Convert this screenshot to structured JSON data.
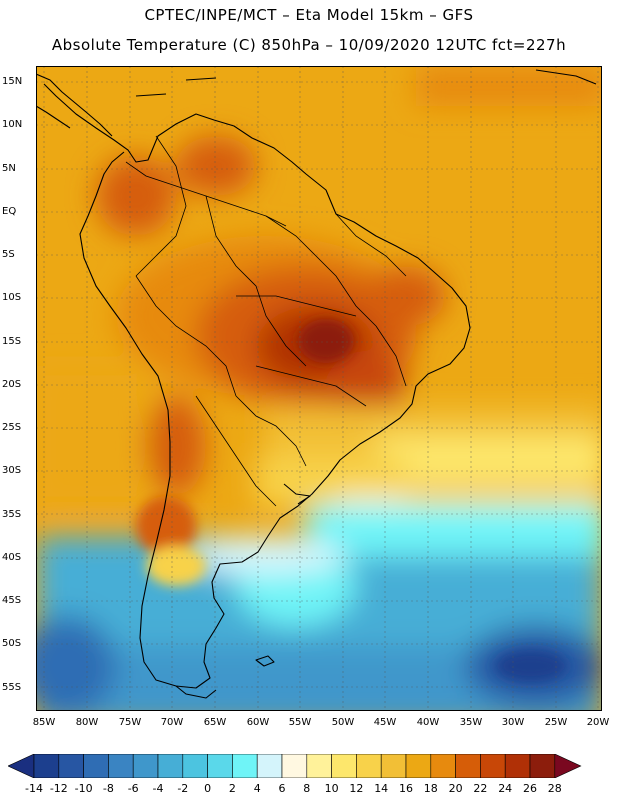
{
  "header": {
    "line1": "CPTEC/INPE/MCT –  Eta Model 15km – GFS",
    "line2": "Absolute Temperature (C) 850hPa – 10/09/2020 12UTC fct=227h"
  },
  "map": {
    "lat_labels": [
      "15N",
      "10N",
      "5N",
      "EQ",
      "5S",
      "10S",
      "15S",
      "20S",
      "25S",
      "30S",
      "35S",
      "40S",
      "45S",
      "50S",
      "55S"
    ],
    "lon_labels": [
      "85W",
      "80W",
      "75W",
      "70W",
      "65W",
      "60W",
      "55W",
      "50W",
      "45W",
      "40W",
      "35W",
      "30W",
      "25W",
      "20W"
    ]
  },
  "colorbar": {
    "labels": [
      "-14",
      "-12",
      "-10",
      "-8",
      "-6",
      "-4",
      "-2",
      "0",
      "2",
      "4",
      "6",
      "8",
      "10",
      "12",
      "14",
      "16",
      "18",
      "20",
      "22",
      "24",
      "26",
      "28"
    ],
    "colors": [
      "#1c3f8e",
      "#2756a3",
      "#2f6db4",
      "#3a84c2",
      "#3f97cb",
      "#46aed6",
      "#4cc4e0",
      "#5ad8ea",
      "#6ff4f7",
      "#d4f4fb",
      "#fff8e1",
      "#fff29a",
      "#fde76c",
      "#f8d24a",
      "#f2bf36",
      "#eca814",
      "#e78a0e",
      "#d65d08",
      "#c84707",
      "#b03006",
      "#8c1d0c"
    ],
    "under_color": "#1a2f80",
    "over_color": "#7a0820"
  }
}
